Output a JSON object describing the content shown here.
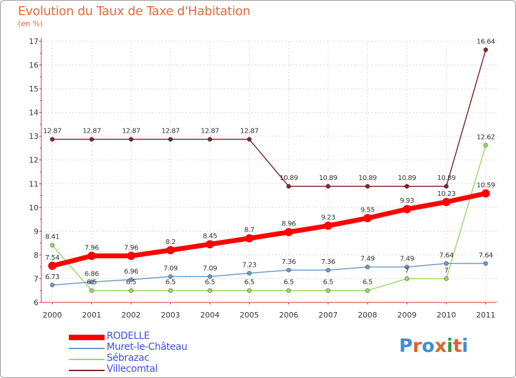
{
  "title": "Evolution du Taux de Taxe d'Habitation",
  "unit": "(en %)",
  "brand": {
    "text": "Proxiti",
    "colors": [
      "#3b8fd4",
      "#e0622a",
      "#3b8fd4",
      "#e0622a",
      "#2e9b3a",
      "#e0622a",
      "#3b8fd4"
    ]
  },
  "chart_data": {
    "type": "line",
    "x": [
      "2000",
      "2001",
      "2002",
      "2003",
      "2004",
      "2005",
      "2006",
      "2007",
      "2008",
      "2009",
      "2010",
      "2011"
    ],
    "ylim": [
      6,
      17
    ],
    "yticks": [
      "6",
      "7",
      "8",
      "9",
      "10",
      "11",
      "12",
      "13",
      "14",
      "15",
      "16",
      "17"
    ],
    "grid": true,
    "legend_position": "bottom-left",
    "series": [
      {
        "name": "RODELLE",
        "color": "#ff0000",
        "values": [
          7.54,
          7.96,
          7.96,
          8.2,
          8.45,
          8.7,
          8.96,
          9.23,
          9.55,
          9.93,
          10.23,
          10.59
        ],
        "labels": [
          "7.54",
          "7.96",
          "7.96",
          "8.2",
          "8.45",
          "8.7",
          "8.96",
          "9.23",
          "9.55",
          "9.93",
          "10.23",
          "10.59"
        ]
      },
      {
        "name": "Muret-le-Château",
        "color": "#6d9ac8",
        "values": [
          6.73,
          6.86,
          6.96,
          7.09,
          7.09,
          7.23,
          7.36,
          7.36,
          7.49,
          7.49,
          7.64,
          7.64
        ],
        "labels": [
          "6.73",
          "6.86",
          "6.96",
          "7.09",
          "7.09",
          "7.23",
          "7.36",
          "7.36",
          "7.49",
          "7.49",
          "7.64",
          "7.64"
        ]
      },
      {
        "name": "Sébrazac",
        "color": "#9ad86a",
        "values": [
          8.41,
          6.5,
          6.5,
          6.5,
          6.5,
          6.5,
          6.5,
          6.5,
          6.5,
          7,
          7,
          12.62
        ],
        "labels": [
          "8.41",
          "6.5",
          "6.5",
          "6.5",
          "6.5",
          "6.5",
          "6.5",
          "6.5",
          "6.5",
          "7",
          "7",
          "12.62"
        ]
      },
      {
        "name": "Villecomtal",
        "color": "#7a2a2a",
        "values": [
          12.87,
          12.87,
          12.87,
          12.87,
          12.87,
          12.87,
          10.89,
          10.89,
          10.89,
          10.89,
          10.89,
          16.64
        ],
        "labels": [
          "12.87",
          "12.87",
          "12.87",
          "12.87",
          "12.87",
          "12.87",
          "10.89",
          "10.89",
          "10.89",
          "10.89",
          "10.89",
          "16.64"
        ]
      }
    ]
  }
}
